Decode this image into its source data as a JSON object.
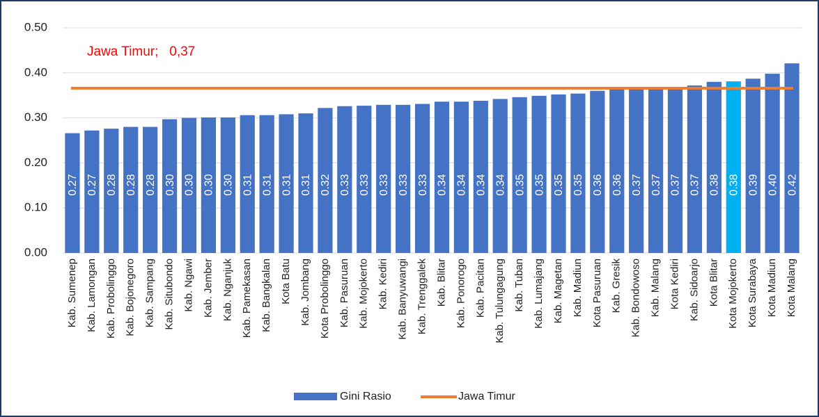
{
  "chart_data": {
    "type": "bar",
    "categories": [
      "Kab. Sumenep",
      "Kab. Lamongan",
      "Kab. Probolinggo",
      "Kab. Bojonegoro",
      "Kab. Sampang",
      "Kab. Situbondo",
      "Kab. Ngawi",
      "Kab. Jember",
      "Kab. Nganjuk",
      "Kab. Pamekasan",
      "Kab. Bangkalan",
      "Kota Batu",
      "Kab. Jombang",
      "Kota Probolinggo",
      "Kab. Pasuruan",
      "Kab. Mojokerto",
      "Kab. Kediri",
      "Kab. Banyuwangi",
      "Kab. Trenggalek",
      "Kab. Blitar",
      "Kab. Ponorogo",
      "Kab. Pacitan",
      "Kab. Tulungagung",
      "Kab. Tuban",
      "Kab. Lumajang",
      "Kab. Magetan",
      "Kab. Madiun",
      "Kota Pasuruan",
      "Kab. Gresik",
      "Kab. Bondowoso",
      "Kab. Malang",
      "Kota Kediri",
      "Kab. Sidoarjo",
      "Kota Blitar",
      "Kota Mojokerto",
      "Kota Surabaya",
      "Kota Madiun",
      "Kota Malang"
    ],
    "series": [
      {
        "name": "Gini Rasio",
        "color": "#4472c4",
        "values": [
          0.266,
          0.272,
          0.276,
          0.28,
          0.28,
          0.297,
          0.3,
          0.301,
          0.301,
          0.306,
          0.306,
          0.308,
          0.31,
          0.322,
          0.326,
          0.327,
          0.329,
          0.329,
          0.331,
          0.336,
          0.336,
          0.338,
          0.342,
          0.346,
          0.349,
          0.352,
          0.354,
          0.36,
          0.364,
          0.366,
          0.367,
          0.368,
          0.372,
          0.38,
          0.381,
          0.387,
          0.398,
          0.421
        ],
        "value_labels": [
          "0.27",
          "0.27",
          "0.28",
          "0.28",
          "0.28",
          "0.30",
          "0.30",
          "0.30",
          "0.30",
          "0.31",
          "0.31",
          "0.31",
          "0.31",
          "0.32",
          "0.33",
          "0.33",
          "0.33",
          "0.33",
          "0.33",
          "0.34",
          "0.34",
          "0.34",
          "0.34",
          "0.35",
          "0.35",
          "0.35",
          "0.35",
          "0.36",
          "0.36",
          "0.37",
          "0.37",
          "0.37",
          "0.37",
          "0.38",
          "0.38",
          "0.39",
          "0.40",
          "0.42"
        ]
      }
    ],
    "highlight": {
      "category": "Kota Mojokerto",
      "color": "#00b0f0"
    },
    "reference": {
      "name": "Jawa Timur",
      "value": 0.366,
      "color": "#ed7d31"
    },
    "annotation": "Jawa Timur;   0,37",
    "ylim": [
      0,
      0.5
    ],
    "yticks": [
      {
        "value": 0,
        "label": "0.00"
      },
      {
        "value": 0.1,
        "label": "0.10"
      },
      {
        "value": 0.2,
        "label": "0.20"
      },
      {
        "value": 0.3,
        "label": "0.30"
      },
      {
        "value": 0.4,
        "label": "0.40"
      },
      {
        "value": 0.5,
        "label": "0.50"
      }
    ],
    "grid": true
  }
}
